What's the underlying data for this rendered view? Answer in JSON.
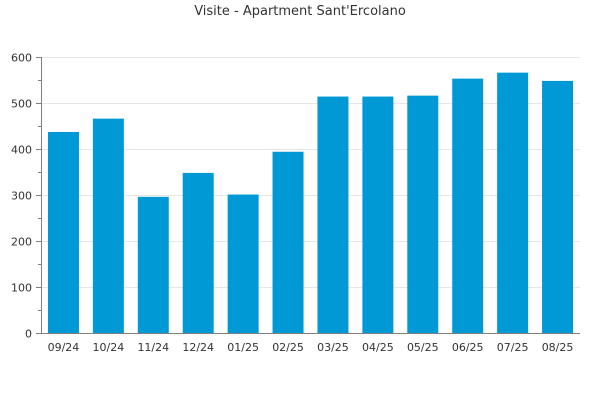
{
  "chart_data": {
    "type": "bar",
    "title": "Visite - Apartment Sant'Ercolano",
    "xlabel": "",
    "ylabel": "",
    "categories": [
      "09/24",
      "10/24",
      "11/24",
      "12/24",
      "01/25",
      "02/25",
      "03/25",
      "04/25",
      "05/25",
      "06/25",
      "07/25",
      "08/25"
    ],
    "values": [
      437,
      466,
      296,
      348,
      301,
      394,
      514,
      514,
      516,
      553,
      566,
      548
    ],
    "ylim": [
      0,
      600
    ],
    "yticks": [
      0,
      100,
      200,
      300,
      400,
      500,
      600
    ],
    "grid": true,
    "legend": "none",
    "bar_color": "#0099d6",
    "grid_color": "#e6e6e6",
    "axis_color": "#808080"
  }
}
